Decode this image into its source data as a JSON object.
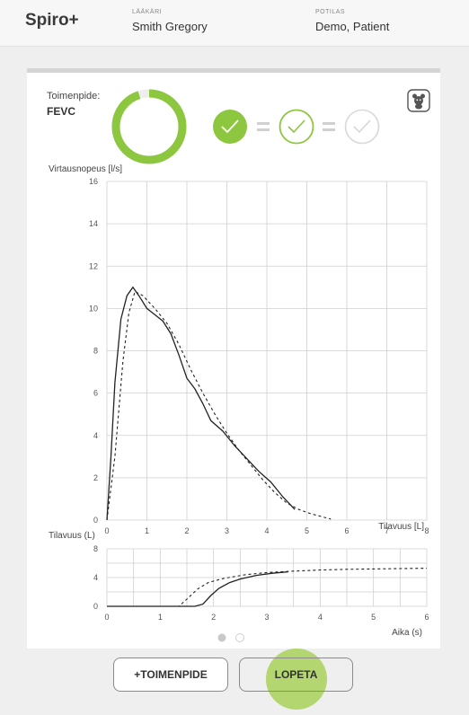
{
  "app": {
    "title": "Spiro+"
  },
  "header": {
    "doctor_label": "LÄÄKÄRI",
    "doctor_name": "Smith Gregory",
    "patient_label": "POTILAS",
    "patient_name": "Demo, Patient"
  },
  "procedure": {
    "label": "Toimenpide:",
    "name": "FEVC"
  },
  "progress": {
    "fraction": 0.95,
    "color": "#8dc63f"
  },
  "quality": {
    "indicators": [
      "check-filled",
      "check-outline",
      "check-empty"
    ],
    "colors": {
      "green": "#8dc63f",
      "grey": "#d0d0d0"
    }
  },
  "icons": {
    "mascot": "bear-icon"
  },
  "chart_data": [
    {
      "type": "line",
      "title": "",
      "ylabel": "Virtausnopeus [l/s]",
      "xlabel": "Tilavuus [L]",
      "xlim": [
        0,
        8
      ],
      "ylim": [
        0,
        16
      ],
      "x_ticks": [
        "0",
        "1",
        "2",
        "3",
        "4",
        "5",
        "6",
        "7",
        "8"
      ],
      "y_ticks": [
        "0",
        "2",
        "4",
        "6",
        "8",
        "10",
        "12",
        "14",
        "16"
      ],
      "grid": true,
      "series": [
        {
          "style": "solid",
          "points": [
            [
              0,
              0
            ],
            [
              0.1,
              3
            ],
            [
              0.2,
              6.5
            ],
            [
              0.35,
              9.5
            ],
            [
              0.5,
              10.6
            ],
            [
              0.65,
              11
            ],
            [
              0.8,
              10.6
            ],
            [
              1,
              10
            ],
            [
              1.2,
              9.7
            ],
            [
              1.4,
              9.4
            ],
            [
              1.6,
              8.8
            ],
            [
              1.8,
              7.8
            ],
            [
              2,
              6.7
            ],
            [
              2.2,
              6.2
            ],
            [
              2.4,
              5.5
            ],
            [
              2.6,
              4.7
            ],
            [
              2.9,
              4.2
            ],
            [
              3.2,
              3.5
            ],
            [
              3.5,
              2.9
            ],
            [
              3.8,
              2.3
            ],
            [
              4.1,
              1.8
            ],
            [
              4.4,
              1.1
            ],
            [
              4.7,
              0.5
            ]
          ]
        },
        {
          "style": "dashed",
          "points": [
            [
              0,
              0
            ],
            [
              0.2,
              3
            ],
            [
              0.4,
              7.5
            ],
            [
              0.55,
              9.8
            ],
            [
              0.7,
              10.8
            ],
            [
              0.9,
              10.6
            ],
            [
              1.2,
              10
            ],
            [
              1.5,
              9.3
            ],
            [
              1.8,
              8.3
            ],
            [
              2.1,
              7.1
            ],
            [
              2.4,
              6
            ],
            [
              2.7,
              5
            ],
            [
              3,
              4.1
            ],
            [
              3.3,
              3.3
            ],
            [
              3.6,
              2.6
            ],
            [
              3.9,
              1.9
            ],
            [
              4.2,
              1.3
            ],
            [
              4.5,
              0.8
            ],
            [
              4.8,
              0.5
            ],
            [
              5.1,
              0.3
            ],
            [
              5.4,
              0.15
            ],
            [
              5.6,
              0.05
            ]
          ]
        }
      ]
    },
    {
      "type": "line",
      "title": "",
      "ylabel": "Tilavuus (L)",
      "xlabel": "Aika (s)",
      "xlim": [
        0,
        6
      ],
      "ylim": [
        0,
        8
      ],
      "x_ticks": [
        "0",
        "1",
        "2",
        "3",
        "4",
        "5",
        "6"
      ],
      "y_ticks": [
        "0",
        "4",
        "8"
      ],
      "grid": true,
      "series": [
        {
          "style": "solid",
          "points": [
            [
              0,
              0
            ],
            [
              1,
              0
            ],
            [
              1.65,
              0
            ],
            [
              1.8,
              0.3
            ],
            [
              1.95,
              1.5
            ],
            [
              2.1,
              2.5
            ],
            [
              2.3,
              3.3
            ],
            [
              2.5,
              3.8
            ],
            [
              2.8,
              4.3
            ],
            [
              3.1,
              4.6
            ],
            [
              3.4,
              4.8
            ]
          ]
        },
        {
          "style": "dashed",
          "points": [
            [
              0,
              0
            ],
            [
              1.35,
              0
            ],
            [
              1.5,
              1
            ],
            [
              1.7,
              2.4
            ],
            [
              1.9,
              3.3
            ],
            [
              2.2,
              3.9
            ],
            [
              2.6,
              4.4
            ],
            [
              3,
              4.7
            ],
            [
              3.5,
              4.9
            ],
            [
              4,
              5.05
            ],
            [
              4.5,
              5.15
            ],
            [
              5,
              5.2
            ],
            [
              5.5,
              5.25
            ],
            [
              6,
              5.3
            ]
          ]
        }
      ]
    }
  ],
  "pagination": {
    "pages": 2,
    "current": 0
  },
  "buttons": {
    "add_procedure": "+TOIMENPIDE",
    "stop": "LOPETA"
  }
}
